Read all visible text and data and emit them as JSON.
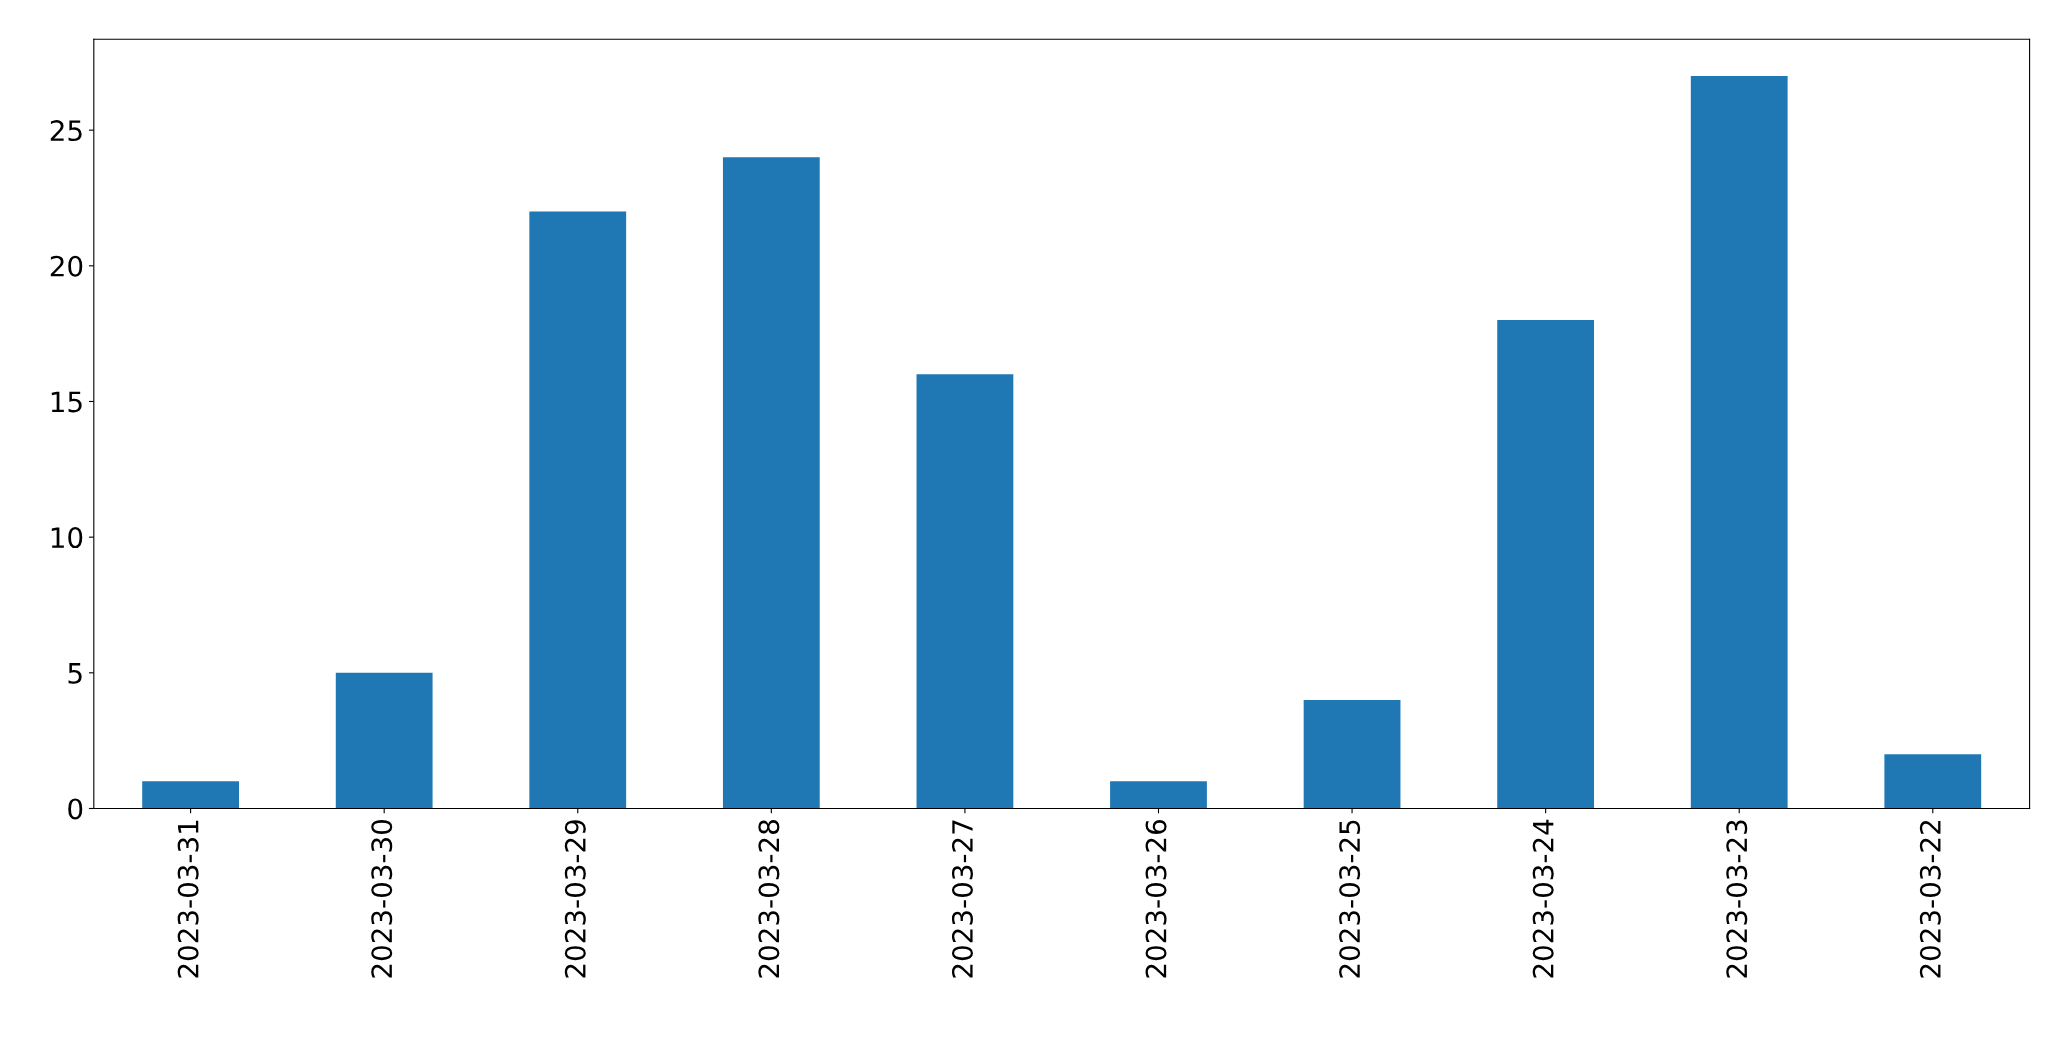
{
  "chart_data": {
    "type": "bar",
    "categories": [
      "2023-03-31",
      "2023-03-30",
      "2023-03-29",
      "2023-03-28",
      "2023-03-27",
      "2023-03-26",
      "2023-03-25",
      "2023-03-24",
      "2023-03-23",
      "2023-03-22"
    ],
    "values": [
      1,
      5,
      22,
      24,
      16,
      1,
      4,
      18,
      27,
      2
    ],
    "color": "#1f77b4",
    "ylim": [
      0,
      28.35
    ],
    "yticks": [
      0,
      5,
      10,
      15,
      20,
      25
    ],
    "grid": false,
    "legend": false
  }
}
